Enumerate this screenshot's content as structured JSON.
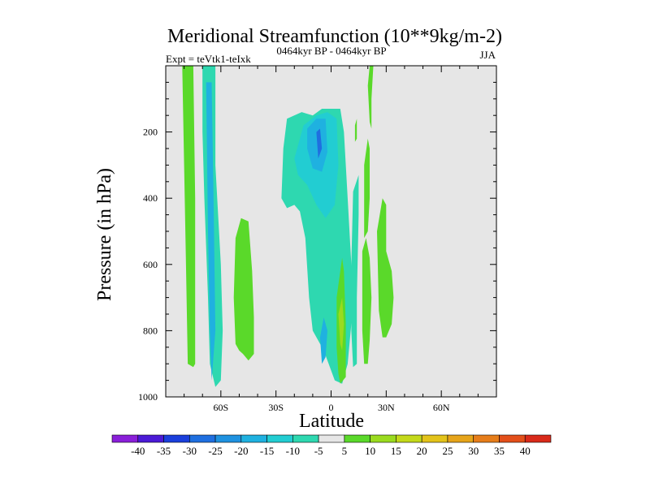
{
  "chart_data": {
    "type": "heatmap",
    "title": "Meridional Streamfunction (10**9kg/m-2)",
    "subtitle": "0464kyr BP - 0464kyr BP",
    "left_label": "Expt = teVtk1-teIxk",
    "right_label": "JJA",
    "xlabel": "Latitude",
    "ylabel": "Pressure (in hPa)",
    "xlim": [
      -90,
      90
    ],
    "ylim": [
      1000,
      0
    ],
    "x_ticks": [
      {
        "value": -60,
        "label": "60S"
      },
      {
        "value": -30,
        "label": "30S"
      },
      {
        "value": 0,
        "label": "0"
      },
      {
        "value": 30,
        "label": "30N"
      },
      {
        "value": 60,
        "label": "60N"
      }
    ],
    "y_ticks": [
      {
        "value": 200,
        "label": "200"
      },
      {
        "value": 400,
        "label": "400"
      },
      {
        "value": 600,
        "label": "600"
      },
      {
        "value": 800,
        "label": "800"
      },
      {
        "value": 1000,
        "label": "1000"
      }
    ],
    "background_color": "#e6e6e6",
    "levels": [
      -40,
      -35,
      -30,
      -25,
      -20,
      -15,
      -10,
      -5,
      5,
      10,
      15,
      20,
      25,
      30,
      35,
      40
    ],
    "level_labels": [
      "-40",
      "-35",
      "-30",
      "-25",
      "-20",
      "-15",
      "-10",
      "-5",
      "5",
      "10",
      "15",
      "20",
      "25",
      "30",
      "35",
      "40"
    ],
    "colors": [
      "#8a1fd9",
      "#4b1ad6",
      "#1a3fdc",
      "#1f6fe0",
      "#1f92e0",
      "#1fb1e0",
      "#22cdd2",
      "#2ed8b0",
      "#e6e6e6",
      "#5ad92a",
      "#9adb1f",
      "#c4d91a",
      "#e3c31a",
      "#e6a41a",
      "#e67d1a",
      "#e34f1a",
      "#d92a1a"
    ],
    "regions": [
      {
        "name": "positive-band-65S",
        "value": 7,
        "points": [
          [
            -81,
            0
          ],
          [
            -75,
            0
          ],
          [
            -74,
            400
          ],
          [
            -74,
            900
          ],
          [
            -75,
            910
          ],
          [
            -78,
            900
          ],
          [
            -79,
            600
          ],
          [
            -80,
            300
          ]
        ]
      },
      {
        "name": "negative-band-60S",
        "value": -8,
        "points": [
          [
            -70,
            0
          ],
          [
            -63,
            0
          ],
          [
            -63,
            300
          ],
          [
            -60,
            600
          ],
          [
            -59,
            800
          ],
          [
            -60,
            950
          ],
          [
            -63,
            970
          ],
          [
            -66,
            900
          ],
          [
            -67,
            700
          ],
          [
            -69,
            400
          ],
          [
            -70,
            200
          ]
        ]
      },
      {
        "name": "negative-core-60S",
        "value": -18,
        "points": [
          [
            -68,
            50
          ],
          [
            -65,
            50
          ],
          [
            -64,
            400
          ],
          [
            -63,
            800
          ],
          [
            -65,
            950
          ],
          [
            -66,
            800
          ],
          [
            -67,
            500
          ]
        ]
      },
      {
        "name": "positive-45S",
        "value": 7,
        "points": [
          [
            -52,
            520
          ],
          [
            -49,
            460
          ],
          [
            -45,
            470
          ],
          [
            -43,
            620
          ],
          [
            -42,
            760
          ],
          [
            -42,
            870
          ],
          [
            -45,
            890
          ],
          [
            -48,
            870
          ],
          [
            -50,
            860
          ],
          [
            -52,
            840
          ],
          [
            -53,
            700
          ]
        ]
      },
      {
        "name": "negative-cell-10S",
        "value": -8,
        "points": [
          [
            -27,
            400
          ],
          [
            -26,
            250
          ],
          [
            -24,
            160
          ],
          [
            -16,
            140
          ],
          [
            -10,
            150
          ],
          [
            -5,
            130
          ],
          [
            5,
            130
          ],
          [
            7,
            200
          ],
          [
            9,
            400
          ],
          [
            11,
            600
          ],
          [
            12,
            720
          ],
          [
            9,
            900
          ],
          [
            6,
            960
          ],
          [
            2,
            950
          ],
          [
            -4,
            860
          ],
          [
            -10,
            800
          ],
          [
            -12,
            700
          ],
          [
            -14,
            520
          ],
          [
            -17,
            440
          ],
          [
            -20,
            420
          ],
          [
            -24,
            430
          ]
        ]
      },
      {
        "name": "negative-cell-inner",
        "value": -13,
        "points": [
          [
            -20,
            280
          ],
          [
            -15,
            180
          ],
          [
            -8,
            150
          ],
          [
            -2,
            140
          ],
          [
            3,
            160
          ],
          [
            4,
            300
          ],
          [
            2,
            420
          ],
          [
            -3,
            460
          ],
          [
            -8,
            420
          ],
          [
            -13,
            360
          ],
          [
            -18,
            330
          ]
        ]
      },
      {
        "name": "negative-cell-core",
        "value": -20,
        "points": [
          [
            -13,
            190
          ],
          [
            -8,
            160
          ],
          [
            -3,
            160
          ],
          [
            -2,
            260
          ],
          [
            -5,
            320
          ],
          [
            -10,
            310
          ],
          [
            -13,
            250
          ]
        ]
      },
      {
        "name": "negative-cell-max",
        "value": -27,
        "points": [
          [
            -8,
            200
          ],
          [
            -6,
            190
          ],
          [
            -5,
            250
          ],
          [
            -7,
            280
          ]
        ]
      },
      {
        "name": "negative-tongue-5S",
        "value": -18,
        "points": [
          [
            -6,
            820
          ],
          [
            -4,
            760
          ],
          [
            -2,
            800
          ],
          [
            -3,
            880
          ],
          [
            -5,
            900
          ]
        ]
      },
      {
        "name": "positive-strip-5N",
        "value": 7,
        "points": [
          [
            3,
            700
          ],
          [
            6,
            580
          ],
          [
            7,
            620
          ],
          [
            8,
            780
          ],
          [
            8,
            940
          ],
          [
            5,
            960
          ],
          [
            4,
            930
          ],
          [
            3,
            850
          ]
        ]
      },
      {
        "name": "positive-core-5N",
        "value": 12,
        "points": [
          [
            4,
            750
          ],
          [
            6,
            700
          ],
          [
            7,
            780
          ],
          [
            6,
            860
          ],
          [
            5,
            840
          ]
        ]
      },
      {
        "name": "negative-strip-15N",
        "value": -8,
        "points": [
          [
            11,
            600
          ],
          [
            12,
            380
          ],
          [
            15,
            330
          ],
          [
            15,
            450
          ],
          [
            14,
            700
          ],
          [
            14,
            900
          ],
          [
            12,
            910
          ],
          [
            11,
            800
          ]
        ]
      },
      {
        "name": "positive-strip-20N",
        "value": 7,
        "points": [
          [
            18,
            300
          ],
          [
            20,
            220
          ],
          [
            21,
            250
          ],
          [
            21,
            400
          ],
          [
            20,
            500
          ],
          [
            18,
            520
          ]
        ]
      },
      {
        "name": "positive-strip-22N",
        "value": 7,
        "points": [
          [
            17,
            560
          ],
          [
            19,
            520
          ],
          [
            21,
            580
          ],
          [
            22,
            700
          ],
          [
            21,
            830
          ],
          [
            20,
            900
          ],
          [
            18,
            900
          ],
          [
            17,
            800
          ]
        ]
      },
      {
        "name": "positive-lobe-30N",
        "value": 7,
        "points": [
          [
            25,
            500
          ],
          [
            28,
            400
          ],
          [
            30,
            420
          ],
          [
            30,
            560
          ],
          [
            33,
            620
          ],
          [
            34,
            700
          ],
          [
            33,
            780
          ],
          [
            30,
            820
          ],
          [
            28,
            820
          ],
          [
            26,
            740
          ]
        ]
      },
      {
        "name": "positive-top-20N",
        "value": 7,
        "points": [
          [
            21,
            0
          ],
          [
            23,
            0
          ],
          [
            22,
            100
          ],
          [
            22,
            190
          ],
          [
            21,
            170
          ],
          [
            20,
            60
          ]
        ]
      },
      {
        "name": "positive-dot-15N",
        "value": 7,
        "points": [
          [
            13,
            180
          ],
          [
            14,
            160
          ],
          [
            14,
            220
          ],
          [
            13,
            230
          ]
        ]
      }
    ]
  }
}
